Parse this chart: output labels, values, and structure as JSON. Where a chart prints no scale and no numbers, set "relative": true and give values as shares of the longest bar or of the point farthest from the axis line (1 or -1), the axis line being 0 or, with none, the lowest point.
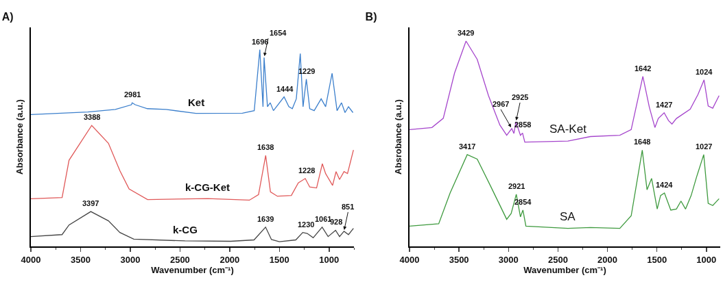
{
  "chart_data": [
    {
      "type": "line",
      "title": "A)",
      "xlabel": "Wavenumber (cm⁻¹)",
      "ylabel": "Absorbance (a.u.)",
      "relative": true,
      "xlim": [
        4000,
        750
      ],
      "xticks": [
        4000,
        3500,
        3000,
        2500,
        2000,
        1500,
        1000
      ],
      "grid": false,
      "legend": false,
      "marker": "none",
      "line_style": "solid",
      "series": [
        {
          "name": "Ket",
          "color": "#3b7fcc",
          "x": [
            4000,
            3428,
            3150,
            2988,
            2981,
            2950,
            2828,
            2640,
            2340,
            1872,
            1753,
            1697,
            1665,
            1654,
            1620,
            1592,
            1560,
            1453,
            1405,
            1370,
            1330,
            1290,
            1262,
            1229,
            1195,
            1150,
            1080,
            1035,
            970,
            920,
            875,
            840,
            805,
            760
          ],
          "values": [
            0.67,
            0.683,
            0.696,
            0.72,
            0.73,
            0.72,
            0.7,
            0.696,
            0.676,
            0.677,
            0.69,
            1.0,
            0.71,
            0.96,
            0.71,
            0.73,
            0.69,
            0.76,
            0.71,
            0.7,
            0.75,
            0.98,
            0.71,
            0.85,
            0.7,
            0.69,
            0.75,
            0.71,
            0.88,
            0.69,
            0.73,
            0.68,
            0.71,
            0.68
          ]
        },
        {
          "name": "k-CG-Ket",
          "color": "#e05858",
          "x": [
            4000,
            3686,
            3616,
            3388,
            3220,
            3105,
            3012,
            2826,
            2220,
            1802,
            1710,
            1638,
            1590,
            1520,
            1380,
            1310,
            1240,
            1195,
            1126,
            1068,
            1035,
            965,
            930,
            895,
            850,
            815,
            755
          ],
          "values": [
            0.242,
            0.248,
            0.438,
            0.615,
            0.524,
            0.385,
            0.292,
            0.238,
            0.243,
            0.235,
            0.263,
            0.462,
            0.277,
            0.255,
            0.259,
            0.323,
            0.345,
            0.302,
            0.297,
            0.42,
            0.37,
            0.31,
            0.38,
            0.34,
            0.38,
            0.37,
            0.49
          ]
        },
        {
          "name": "k-CG",
          "color": "#454545",
          "x": [
            4000,
            3686,
            3616,
            3397,
            3220,
            3105,
            2965,
            2450,
            1990,
            1755,
            1639,
            1580,
            1500,
            1335,
            1265,
            1220,
            1160,
            1070,
            1010,
            935,
            895,
            850,
            805,
            755
          ],
          "values": [
            0.05,
            0.06,
            0.109,
            0.177,
            0.13,
            0.071,
            0.037,
            0.028,
            0.026,
            0.033,
            0.098,
            0.035,
            0.024,
            0.033,
            0.071,
            0.066,
            0.044,
            0.098,
            0.05,
            0.082,
            0.05,
            0.077,
            0.06,
            0.092
          ]
        }
      ],
      "annotations": [
        {
          "text": "1696",
          "x": 1696,
          "y": 1.0
        },
        {
          "text": "1654",
          "x": 1654,
          "y": 0.96
        },
        {
          "text": "1444",
          "x": 1444,
          "y": 0.76
        },
        {
          "text": "1229",
          "x": 1229,
          "y": 0.85
        },
        {
          "text": "2981",
          "x": 2981,
          "y": 0.73
        },
        {
          "text": "3388",
          "x": 3388,
          "y": 0.615
        },
        {
          "text": "1638",
          "x": 1638,
          "y": 0.462
        },
        {
          "text": "1228",
          "x": 1228,
          "y": 0.345
        },
        {
          "text": "3397",
          "x": 3397,
          "y": 0.177
        },
        {
          "text": "1639",
          "x": 1639,
          "y": 0.098
        },
        {
          "text": "1230",
          "x": 1230,
          "y": 0.071
        },
        {
          "text": "1061",
          "x": 1061,
          "y": 0.098
        },
        {
          "text": "928",
          "x": 928,
          "y": 0.082
        },
        {
          "text": "851",
          "x": 851,
          "y": 0.077
        }
      ]
    },
    {
      "type": "line",
      "title": "B)",
      "xlabel": "Wavenumber (cm⁻¹)",
      "ylabel": "Absrobance (a.u.)",
      "relative": true,
      "xlim": [
        4000,
        860
      ],
      "xticks": [
        4000,
        3500,
        3000,
        2500,
        2000,
        1500,
        1000
      ],
      "grid": false,
      "legend": false,
      "marker": "none",
      "line_style": "solid",
      "series": [
        {
          "name": "SA-Ket",
          "color": "#a545cc",
          "x": [
            4000,
            3774,
            3659,
            3545,
            3429,
            3316,
            3202,
            3087,
            3018,
            2967,
            2945,
            2925,
            2879,
            2858,
            2835,
            2400,
            2172,
            1875,
            1760,
            1642,
            1577,
            1520,
            1486,
            1427,
            1383,
            1348,
            1303,
            1164,
            1085,
            1024,
            982,
            936,
            872
          ],
          "values": [
            0.569,
            0.579,
            0.624,
            0.844,
            1.0,
            0.911,
            0.734,
            0.591,
            0.541,
            0.574,
            0.55,
            0.607,
            0.541,
            0.552,
            0.508,
            0.513,
            0.535,
            0.541,
            0.569,
            0.828,
            0.679,
            0.579,
            0.623,
            0.651,
            0.613,
            0.596,
            0.623,
            0.668,
            0.74,
            0.811,
            0.684,
            0.673,
            0.734
          ]
        },
        {
          "name": "SA",
          "color": "#3e9a3e",
          "x": [
            4000,
            3705,
            3590,
            3417,
            3316,
            3180,
            3018,
            2973,
            2921,
            2879,
            2854,
            2824,
            2400,
            2172,
            1875,
            1760,
            1648,
            1600,
            1554,
            1497,
            1463,
            1424,
            1360,
            1303,
            1257,
            1211,
            1154,
            1100,
            1027,
            982,
            936,
            872
          ],
          "values": [
            0.099,
            0.11,
            0.26,
            0.447,
            0.425,
            0.293,
            0.132,
            0.16,
            0.254,
            0.144,
            0.177,
            0.099,
            0.088,
            0.092,
            0.088,
            0.149,
            0.469,
            0.276,
            0.331,
            0.182,
            0.248,
            0.26,
            0.177,
            0.182,
            0.221,
            0.182,
            0.248,
            0.337,
            0.447,
            0.21,
            0.199,
            0.232
          ]
        }
      ],
      "annotations": [
        {
          "text": "3429",
          "x": 3429,
          "y": 1.0
        },
        {
          "text": "2967",
          "x": 2967,
          "y": 0.574
        },
        {
          "text": "2925",
          "x": 2925,
          "y": 0.607
        },
        {
          "text": "2858",
          "x": 2858,
          "y": 0.552
        },
        {
          "text": "1642",
          "x": 1642,
          "y": 0.828
        },
        {
          "text": "1427",
          "x": 1427,
          "y": 0.651
        },
        {
          "text": "1024",
          "x": 1024,
          "y": 0.811
        },
        {
          "text": "3417",
          "x": 3417,
          "y": 0.447
        },
        {
          "text": "2921",
          "x": 2921,
          "y": 0.254
        },
        {
          "text": "2854",
          "x": 2854,
          "y": 0.177
        },
        {
          "text": "1648",
          "x": 1648,
          "y": 0.469
        },
        {
          "text": "1424",
          "x": 1424,
          "y": 0.26
        },
        {
          "text": "1027",
          "x": 1027,
          "y": 0.447
        }
      ]
    }
  ]
}
